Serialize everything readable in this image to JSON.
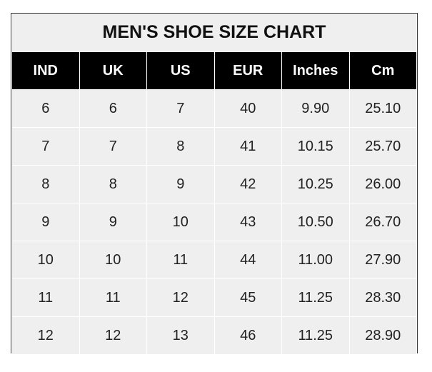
{
  "title": "MEN'S SHOE SIZE CHART",
  "headers": [
    "IND",
    "UK",
    "US",
    "EUR",
    "Inches",
    "Cm"
  ],
  "rows": [
    [
      "6",
      "6",
      "7",
      "40",
      "9.90",
      "25.10"
    ],
    [
      "7",
      "7",
      "8",
      "41",
      "10.15",
      "25.70"
    ],
    [
      "8",
      "8",
      "9",
      "42",
      "10.25",
      "26.00"
    ],
    [
      "9",
      "9",
      "10",
      "43",
      "10.50",
      "26.70"
    ],
    [
      "10",
      "10",
      "11",
      "44",
      "11.00",
      "27.90"
    ],
    [
      "11",
      "11",
      "12",
      "45",
      "11.25",
      "28.30"
    ],
    [
      "12",
      "12",
      "13",
      "46",
      "11.25",
      "28.90"
    ]
  ],
  "colors": {
    "header_bg": "#000000",
    "body_bg": "#efefef",
    "header_text": "#ffffff"
  }
}
